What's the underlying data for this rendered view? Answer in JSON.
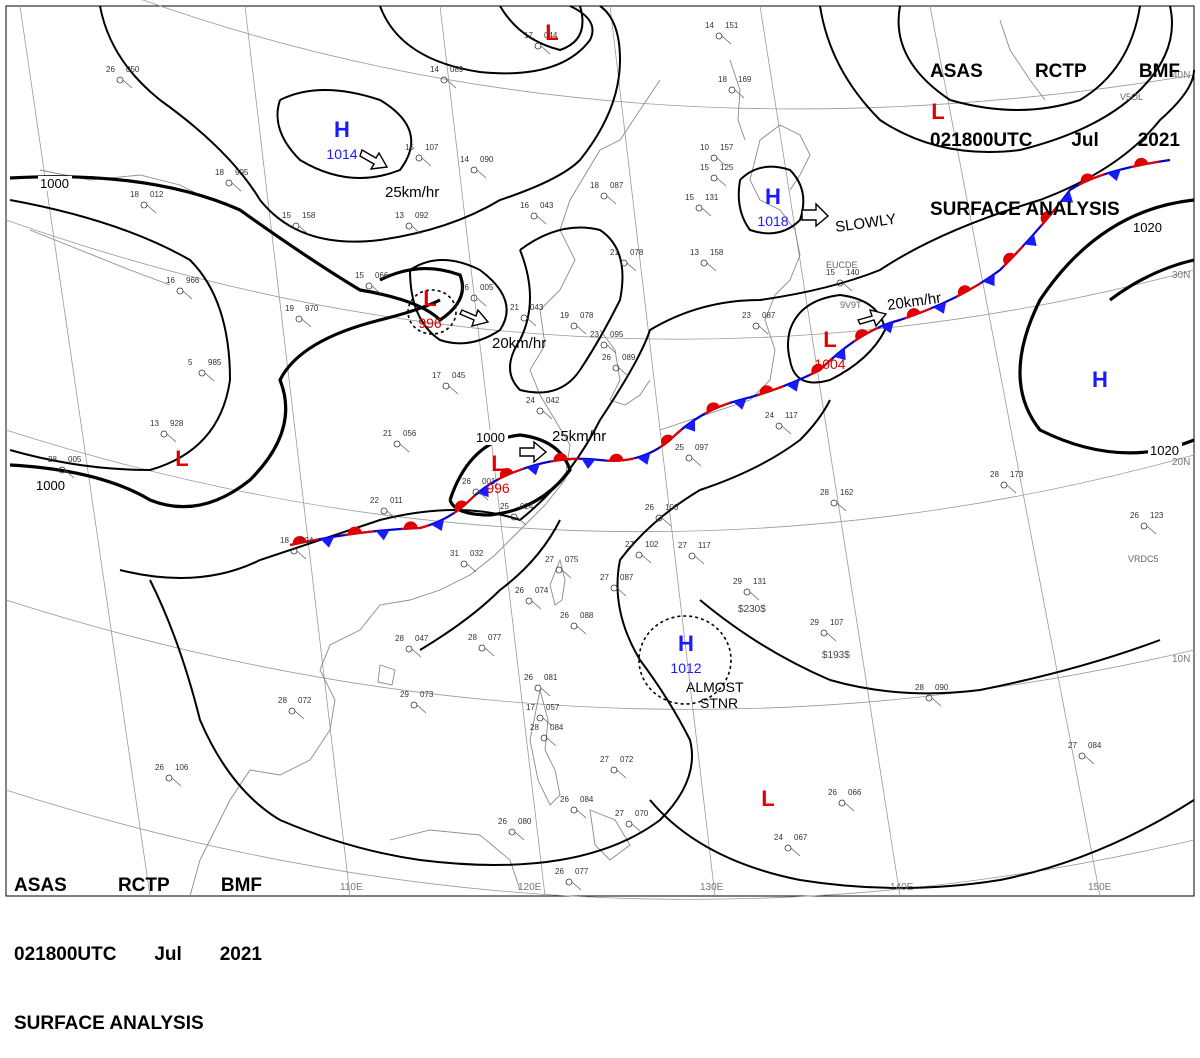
{
  "header": {
    "line1": [
      "ASAS",
      "RCTP",
      "BMF"
    ],
    "line2": [
      "021800UTC",
      "Jul",
      "2021"
    ],
    "line3": "SURFACE ANALYSIS"
  },
  "colors": {
    "high": "#1a1aff",
    "low": "#e00000",
    "isobar": "#000000",
    "grid": "#9a9a9a",
    "coast": "#888888"
  },
  "pressure_centers": [
    {
      "type": "H",
      "value": "1014",
      "color": "high"
    },
    {
      "type": "H",
      "value": "1018",
      "color": "high"
    },
    {
      "type": "H",
      "value": "",
      "color": "high"
    },
    {
      "type": "H",
      "value": "1012",
      "color": "high"
    },
    {
      "type": "L",
      "value": "996",
      "color": "low"
    },
    {
      "type": "L",
      "value": "996",
      "color": "low"
    },
    {
      "type": "L",
      "value": "1004",
      "color": "low"
    },
    {
      "type": "L",
      "value": "",
      "color": "low"
    },
    {
      "type": "L",
      "value": "",
      "color": "low"
    },
    {
      "type": "L",
      "value": "",
      "color": "low"
    },
    {
      "type": "L",
      "value": "",
      "color": "low"
    }
  ],
  "motion_labels": [
    "25km/hr",
    "20km/hr",
    "25km/hr",
    "20km/hr",
    "SLOWLY"
  ],
  "stnr_label": [
    "ALMOST",
    "STNR"
  ],
  "isobar_labels": [
    "1000",
    "1000",
    "1000",
    "1020",
    "1020"
  ],
  "longitude_labels": [
    "110E",
    "120E",
    "130E",
    "140E",
    "150E"
  ],
  "latitude_labels": [
    "40N",
    "30N",
    "20N",
    "10N"
  ],
  "ship_labels": [
    "EUCDE",
    "9V9T",
    "VRDC5",
    "V5OL"
  ],
  "stations": [
    {
      "t": "17",
      "p": "044"
    },
    {
      "t": "14",
      "p": "089"
    },
    {
      "t": "26",
      "p": "050"
    },
    {
      "t": "15",
      "p": "107"
    },
    {
      "t": "14",
      "p": "090"
    },
    {
      "t": "18",
      "p": "012"
    },
    {
      "t": "18",
      "p": "995"
    },
    {
      "t": "15",
      "p": "158"
    },
    {
      "t": "13",
      "p": "092"
    },
    {
      "t": "16",
      "p": "043"
    },
    {
      "t": "18",
      "p": "087"
    },
    {
      "t": "15",
      "p": "125"
    },
    {
      "t": "15",
      "p": "131"
    },
    {
      "t": "13",
      "p": "158"
    },
    {
      "t": "21",
      "p": "078"
    },
    {
      "t": "16",
      "p": "966"
    },
    {
      "t": "19",
      "p": "970"
    },
    {
      "t": "15",
      "p": "066"
    },
    {
      "t": "16",
      "p": "005"
    },
    {
      "t": "21",
      "p": "043"
    },
    {
      "t": "19",
      "p": "078"
    },
    {
      "t": "5",
      "p": "985"
    },
    {
      "t": "17",
      "p": "045"
    },
    {
      "t": "24",
      "p": "042"
    },
    {
      "t": "21",
      "p": "056"
    },
    {
      "t": "13",
      "p": "928"
    },
    {
      "t": "28",
      "p": "005"
    },
    {
      "t": "26",
      "p": "001"
    },
    {
      "t": "22",
      "p": "011"
    },
    {
      "t": "25",
      "p": "024"
    },
    {
      "t": "18",
      "p": "024"
    },
    {
      "t": "31",
      "p": "032"
    },
    {
      "t": "27",
      "p": "075"
    },
    {
      "t": "26",
      "p": "074"
    },
    {
      "t": "26",
      "p": "088"
    },
    {
      "t": "27",
      "p": "087"
    },
    {
      "t": "26",
      "p": "100"
    },
    {
      "t": "27",
      "p": "102"
    },
    {
      "t": "27",
      "p": "117"
    },
    {
      "t": "29",
      "p": "131"
    },
    {
      "t": "29",
      "p": "107"
    },
    {
      "t": "28",
      "p": "162"
    },
    {
      "t": "28",
      "p": "173"
    },
    {
      "t": "26",
      "p": "123"
    },
    {
      "t": "28",
      "p": "077"
    },
    {
      "t": "29",
      "p": "073"
    },
    {
      "t": "28",
      "p": "072"
    },
    {
      "t": "28",
      "p": "047"
    },
    {
      "t": "26",
      "p": "081"
    },
    {
      "t": "17",
      "p": "057"
    },
    {
      "t": "28",
      "p": "084"
    },
    {
      "t": "27",
      "p": "072"
    },
    {
      "t": "26",
      "p": "084"
    },
    {
      "t": "26",
      "p": "080"
    },
    {
      "t": "27",
      "p": "070"
    },
    {
      "t": "26",
      "p": "077"
    },
    {
      "t": "26",
      "p": "106"
    },
    {
      "t": "26",
      "p": "066"
    },
    {
      "t": "24",
      "p": "067"
    },
    {
      "t": "27",
      "p": "084"
    },
    {
      "t": "28",
      "p": "090"
    },
    {
      "t": "23",
      "p": "087"
    },
    {
      "t": "24",
      "p": "117"
    },
    {
      "t": "25",
      "p": "097"
    },
    {
      "t": "26",
      "p": "089"
    },
    {
      "t": "23",
      "p": "095"
    },
    {
      "t": "15",
      "p": "140"
    },
    {
      "t": "14",
      "p": "151"
    },
    {
      "t": "10",
      "p": "157"
    },
    {
      "t": "18",
      "p": "169"
    }
  ],
  "ship_reports": [
    "$230$",
    "$193$"
  ]
}
